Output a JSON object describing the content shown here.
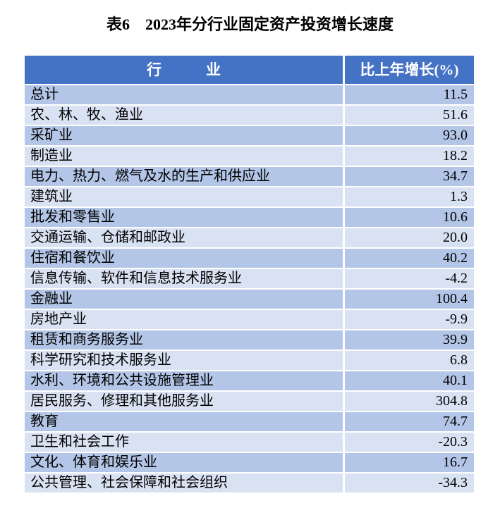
{
  "title": "表6　2023年分行业固定资产投资增长速度",
  "table": {
    "header": {
      "industry": "行　　　业",
      "growth": "比上年增长(%)"
    },
    "rows": [
      {
        "industry": "总计",
        "growth": "11.5"
      },
      {
        "industry": "农、林、牧、渔业",
        "growth": "51.6"
      },
      {
        "industry": "采矿业",
        "growth": "93.0"
      },
      {
        "industry": "制造业",
        "growth": "18.2"
      },
      {
        "industry": "电力、热力、燃气及水的生产和供应业",
        "growth": "34.7"
      },
      {
        "industry": "建筑业",
        "growth": "1.3"
      },
      {
        "industry": "批发和零售业",
        "growth": "10.6"
      },
      {
        "industry": "交通运输、仓储和邮政业",
        "growth": "20.0"
      },
      {
        "industry": "住宿和餐饮业",
        "growth": "40.2"
      },
      {
        "industry": "信息传输、软件和信息技术服务业",
        "growth": "-4.2"
      },
      {
        "industry": "金融业",
        "growth": "100.4"
      },
      {
        "industry": "房地产业",
        "growth": "-9.9"
      },
      {
        "industry": "租赁和商务服务业",
        "growth": "39.9"
      },
      {
        "industry": "科学研究和技术服务业",
        "growth": "6.8"
      },
      {
        "industry": "水利、环境和公共设施管理业",
        "growth": "40.1"
      },
      {
        "industry": "居民服务、修理和其他服务业",
        "growth": "304.8"
      },
      {
        "industry": "教育",
        "growth": "74.7"
      },
      {
        "industry": "卫生和社会工作",
        "growth": "-20.3"
      },
      {
        "industry": "文化、体育和娱乐业",
        "growth": "16.7"
      },
      {
        "industry": "公共管理、社会保障和社会组织",
        "growth": "-34.3"
      }
    ],
    "colors": {
      "header_bg": "#4472C4",
      "header_text": "#FFFFFF",
      "band_dark": "#B4C6E7",
      "band_light": "#D9E2F3",
      "separator": "#FFFFFF",
      "body_text": "#000000",
      "page_bg": "#FFFFFF"
    }
  }
}
